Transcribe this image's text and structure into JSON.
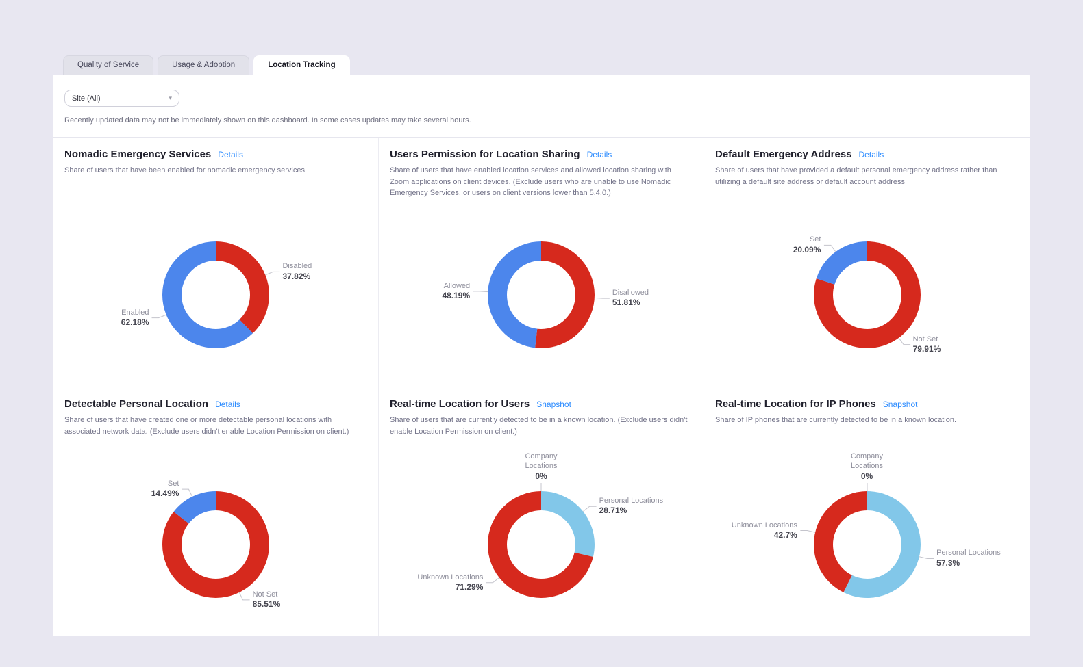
{
  "tabs": [
    {
      "label": "Quality of Service"
    },
    {
      "label": "Usage & Adoption"
    },
    {
      "label": "Location Tracking"
    }
  ],
  "active_tab": "Location Tracking",
  "filter": {
    "site": "Site (All)"
  },
  "notice": "Recently updated data may not be immediately shown on this dashboard. In some cases updates may take several hours.",
  "colors": {
    "blue": "#4c86ec",
    "red": "#d6291d",
    "light_blue": "#82c7e9",
    "link": "#2d8cff"
  },
  "cards": [
    {
      "title": "Nomadic Emergency Services",
      "link": "Details",
      "description": "Share of users that have been enabled for nomadic emergency services"
    },
    {
      "title": "Users Permission for Location Sharing",
      "link": "Details",
      "description": "Share of users that have enabled location services and allowed location sharing with Zoom applications on client devices. (Exclude users who are unable to use Nomadic Emergency Services, or users on client versions lower than 5.4.0.)"
    },
    {
      "title": "Default Emergency Address",
      "link": "Details",
      "description": "Share of users that have provided a default personal emergency address rather than utilizing a default site address or default account address"
    },
    {
      "title": "Detectable Personal Location",
      "link": "Details",
      "description": "Share of users that have created one or more detectable personal locations with associated network data. (Exclude users didn't enable Location Permission on client.)"
    },
    {
      "title": "Real-time Location for Users",
      "link": "Snapshot",
      "description": "Share of users that are currently detected to be in a known location. (Exclude users didn't enable Location Permission on client.)"
    },
    {
      "title": "Real-time Location for IP Phones",
      "link": "Snapshot",
      "description": "Share of IP phones that are currently detected to be in a known location."
    }
  ],
  "chart_data": [
    {
      "type": "pie",
      "title": "Nomadic Emergency Services",
      "segments": [
        {
          "label": "Disabled",
          "value": 37.82,
          "display": "37.82%",
          "color": "red"
        },
        {
          "label": "Enabled",
          "value": 62.18,
          "display": "62.18%",
          "color": "blue"
        }
      ]
    },
    {
      "type": "pie",
      "title": "Users Permission for Location Sharing",
      "segments": [
        {
          "label": "Disallowed",
          "value": 51.81,
          "display": "51.81%",
          "color": "red"
        },
        {
          "label": "Allowed",
          "value": 48.19,
          "display": "48.19%",
          "color": "blue"
        }
      ]
    },
    {
      "type": "pie",
      "title": "Default Emergency Address",
      "segments": [
        {
          "label": "Not Set",
          "value": 79.91,
          "display": "79.91%",
          "color": "red"
        },
        {
          "label": "Set",
          "value": 20.09,
          "display": "20.09%",
          "color": "blue"
        }
      ]
    },
    {
      "type": "pie",
      "title": "Detectable Personal Location",
      "segments": [
        {
          "label": "Not Set",
          "value": 85.51,
          "display": "85.51%",
          "color": "red"
        },
        {
          "label": "Set",
          "value": 14.49,
          "display": "14.49%",
          "color": "blue"
        }
      ]
    },
    {
      "type": "pie",
      "title": "Real-time Location for Users",
      "segments": [
        {
          "label": "Company Locations",
          "value": 0,
          "display": "0%",
          "color": "blue"
        },
        {
          "label": "Personal Locations",
          "value": 28.71,
          "display": "28.71%",
          "color": "light_blue"
        },
        {
          "label": "Unknown Locations",
          "value": 71.29,
          "display": "71.29%",
          "color": "red"
        }
      ]
    },
    {
      "type": "pie",
      "title": "Real-time Location for IP Phones",
      "segments": [
        {
          "label": "Company Locations",
          "value": 0,
          "display": "0%",
          "color": "blue"
        },
        {
          "label": "Personal Locations",
          "value": 57.3,
          "display": "57.3%",
          "color": "light_blue"
        },
        {
          "label": "Unknown Locations",
          "value": 42.7,
          "display": "42.7%",
          "color": "red"
        }
      ]
    }
  ]
}
